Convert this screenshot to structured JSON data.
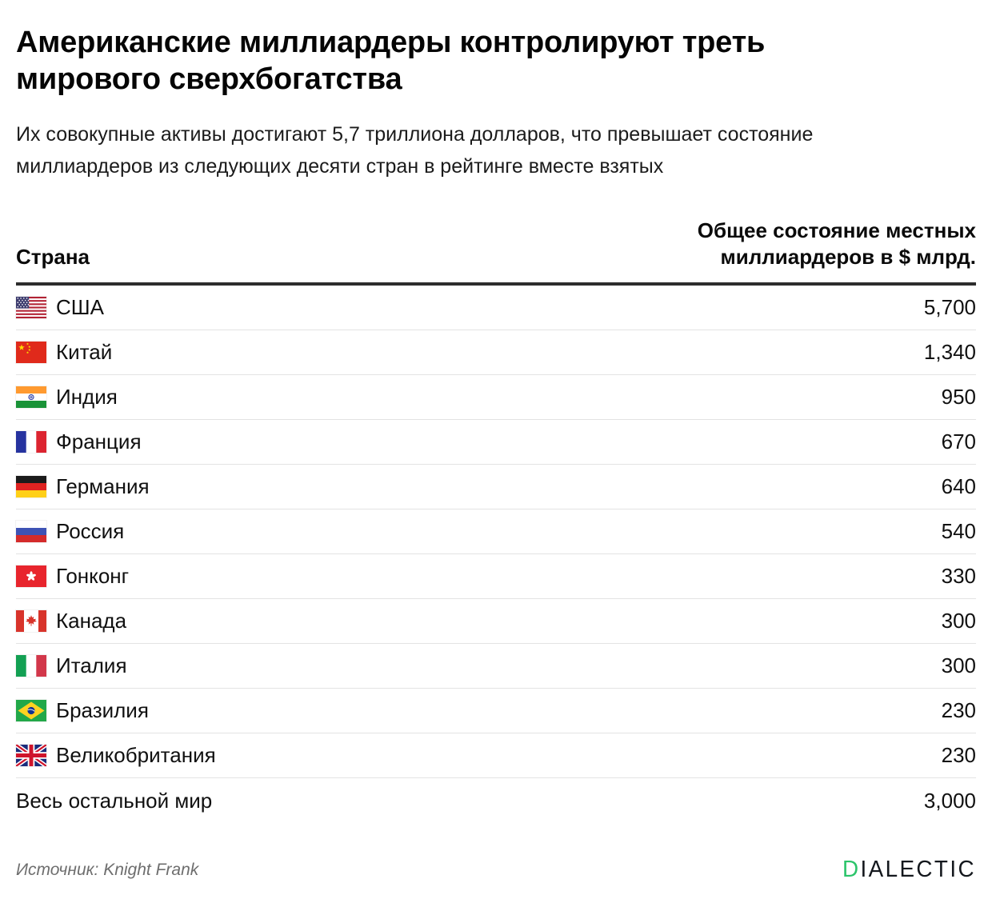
{
  "header": {
    "title": "Американские миллиардеры контролируют треть мирового сверхбогатства",
    "subtitle": "Их совокупные активы достигают 5,7 триллиона долларов, что превышает состояние миллиардеров из следующих десяти стран в рейтинге вместе взятых"
  },
  "table_header": {
    "country_col": "Страна",
    "value_col_line1": "Общее состояние местных",
    "value_col_line2": "миллиардеров в $ млрд."
  },
  "chart_data": {
    "type": "table",
    "title": "Американские миллиардеры контролируют треть мирового сверхбогатства",
    "subtitle": "Их совокупные активы достигают 5,7 триллиона долларов, что превышает состояние миллиардеров из следующих десяти стран в рейтинге вместе взятых",
    "columns": [
      "Страна",
      "Общее состояние местных миллиардеров в $ млрд."
    ],
    "unit": "$ млрд.",
    "rows": [
      {
        "country": "США",
        "flag": "usa",
        "value": 5700,
        "display": "5,700"
      },
      {
        "country": "Китай",
        "flag": "china",
        "value": 1340,
        "display": "1,340"
      },
      {
        "country": "Индия",
        "flag": "india",
        "value": 950,
        "display": "950"
      },
      {
        "country": "Франция",
        "flag": "france",
        "value": 670,
        "display": "670"
      },
      {
        "country": "Германия",
        "flag": "germany",
        "value": 640,
        "display": "640"
      },
      {
        "country": "Россия",
        "flag": "russia",
        "value": 540,
        "display": "540"
      },
      {
        "country": "Гонконг",
        "flag": "hongkong",
        "value": 330,
        "display": "330"
      },
      {
        "country": "Канада",
        "flag": "canada",
        "value": 300,
        "display": "300"
      },
      {
        "country": "Италия",
        "flag": "italy",
        "value": 300,
        "display": "300"
      },
      {
        "country": "Бразилия",
        "flag": "brazil",
        "value": 230,
        "display": "230"
      },
      {
        "country": "Великобритания",
        "flag": "uk",
        "value": 230,
        "display": "230"
      },
      {
        "country": "Весь остальной мир",
        "flag": null,
        "value": 3000,
        "display": "3,000"
      }
    ],
    "source": "Источник: Knight Frank"
  },
  "footer": {
    "source": "Источник: Knight Frank",
    "logo_d": "D",
    "logo_rest": "IALECTIC"
  },
  "colors": {
    "logo_accent": "#2BC46A",
    "header_rule": "#2D2D2D",
    "row_divider": "#E3E3E3"
  }
}
